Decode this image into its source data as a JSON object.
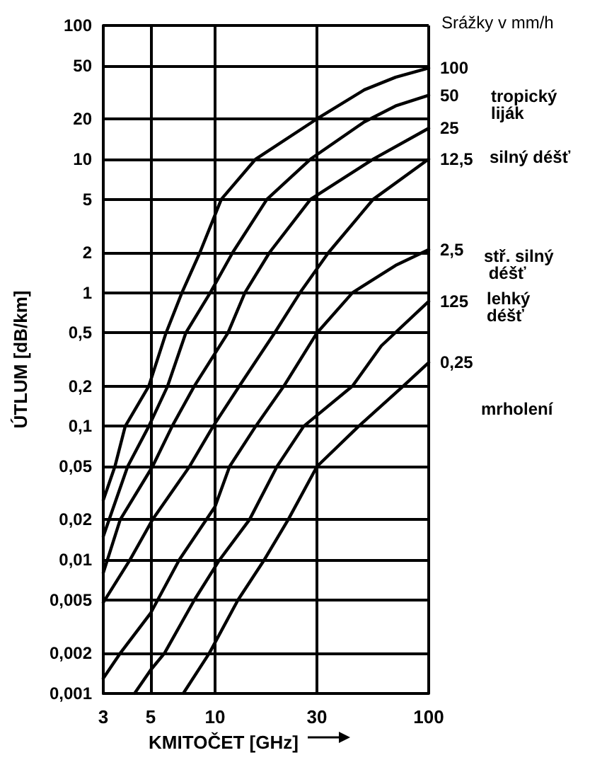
{
  "chart_data": {
    "type": "line",
    "xlabel": "KMITOČET [GHz]",
    "ylabel": "ÚTLUM [dB/km]",
    "legend_title": "Srážky v mm/h",
    "log": "xy",
    "grid": true,
    "legend": false,
    "marker": "none",
    "line_style": "solid",
    "xlim": [
      3,
      100
    ],
    "xticks": [
      3,
      5,
      10,
      30,
      100
    ],
    "ylim": [
      0.001,
      100
    ],
    "yticks": [
      100,
      50,
      20,
      10,
      5,
      2,
      1,
      {
        "value": 0.5,
        "label": "0,5"
      },
      {
        "value": 0.2,
        "label": "0,2"
      },
      {
        "value": 0.1,
        "label": "0,1"
      },
      {
        "value": 0.05,
        "label": "0,05"
      },
      {
        "value": 0.02,
        "label": "0,02"
      },
      {
        "value": 0.01,
        "label": "0,01"
      },
      {
        "value": 0.005,
        "label": "0,005"
      },
      {
        "value": 0.002,
        "label": "0,002"
      },
      {
        "value": 0.001,
        "label": "0,001"
      }
    ],
    "series": [
      {
        "name": "100",
        "color": "#000000",
        "x": [
          3,
          3.4,
          3.8,
          4.9,
          5.9,
          7,
          8.5,
          10.7,
          15.5,
          30,
          50,
          70,
          100
        ],
        "values": [
          0.028,
          0.05,
          0.1,
          0.2,
          0.5,
          1,
          2,
          5,
          10,
          20,
          33,
          41,
          48
        ]
      },
      {
        "name": "50",
        "color": "#000000",
        "x": [
          3,
          3.9,
          4.9,
          6,
          7.3,
          9.5,
          12.1,
          17.5,
          28,
          50,
          70,
          100
        ],
        "values": [
          0.015,
          0.05,
          0.1,
          0.2,
          0.5,
          1,
          2,
          5,
          10,
          19,
          25,
          30
        ]
      },
      {
        "name": "25",
        "color": "#000000",
        "x": [
          3,
          3.6,
          5.1,
          6.3,
          8,
          11.5,
          13.8,
          18,
          28,
          55,
          100
        ],
        "values": [
          0.008,
          0.02,
          0.05,
          0.1,
          0.2,
          0.5,
          1,
          2,
          5,
          10,
          17
        ]
      },
      {
        "name": "12,5",
        "color": "#000000",
        "x": [
          3,
          4,
          5.1,
          7.6,
          9.8,
          13,
          19,
          25,
          34,
          55,
          100
        ],
        "values": [
          0.0048,
          0.01,
          0.02,
          0.05,
          0.1,
          0.2,
          0.5,
          1,
          2,
          5,
          10
        ]
      },
      {
        "name": "2,5",
        "color": "#000000",
        "x": [
          3,
          3.6,
          5,
          6.8,
          10,
          11.7,
          15.5,
          21,
          30,
          44,
          70,
          100
        ],
        "values": [
          0.0013,
          0.002,
          0.004,
          0.01,
          0.025,
          0.05,
          0.1,
          0.2,
          0.5,
          1,
          1.6,
          2.1
        ]
      },
      {
        "name": "125",
        "color": "#000000",
        "x": [
          4.2,
          5,
          5.8,
          8,
          10.5,
          14.5,
          19.5,
          26,
          44,
          60,
          100
        ],
        "values": [
          0.001,
          0.0015,
          0.002,
          0.005,
          0.01,
          0.02,
          0.05,
          0.1,
          0.2,
          0.4,
          0.86
        ]
      },
      {
        "name": "0,25",
        "color": "#000000",
        "x": [
          7.1,
          9.4,
          12.8,
          17,
          22,
          30,
          47,
          76,
          100
        ],
        "values": [
          0.001,
          0.002,
          0.005,
          0.01,
          0.02,
          0.05,
          0.1,
          0.2,
          0.3
        ]
      }
    ],
    "annotations": [
      "tropický liják",
      "silný déšť",
      "stř. silný déšť",
      "lehký déšť",
      "mrholení"
    ]
  }
}
